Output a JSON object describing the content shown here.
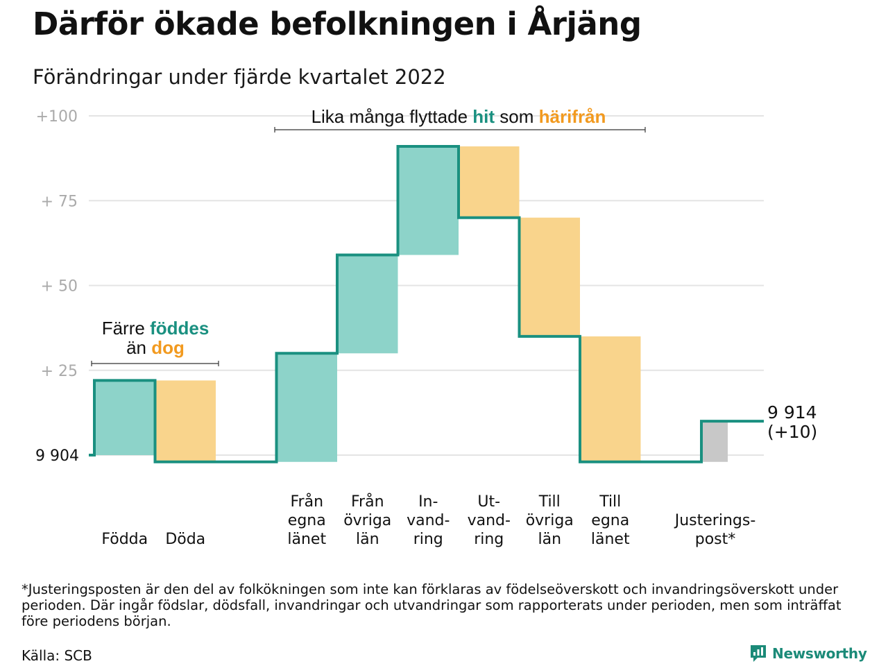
{
  "header": {
    "title": "Därför ökade befolkningen i Årjäng",
    "subtitle": "Förändringar under fjärde kvartalet 2022"
  },
  "chart_data": {
    "type": "bar",
    "subtype": "waterfall",
    "start": 9904,
    "end": 9914,
    "start_label": "9 904",
    "end_label": [
      "9 914",
      "(+10)"
    ],
    "y_ticks": [
      {
        "value": 100,
        "label": "+100"
      },
      {
        "value": 75,
        "label": "+ 75"
      },
      {
        "value": 50,
        "label": "+ 50"
      },
      {
        "value": 25,
        "label": "+ 25"
      }
    ],
    "ylim": [
      -2,
      100
    ],
    "grid": true,
    "steps": [
      {
        "key": "fodda",
        "lines": [
          "Födda"
        ],
        "delta": 22,
        "kind": "in"
      },
      {
        "key": "doda",
        "lines": [
          "Döda"
        ],
        "delta": -24,
        "kind": "out"
      },
      {
        "key": "fran-egna-lanet",
        "lines": [
          "Från",
          "egna",
          "länet"
        ],
        "delta": 32,
        "kind": "in"
      },
      {
        "key": "fran-ovriga-lan",
        "lines": [
          "Från",
          "övriga",
          "län"
        ],
        "delta": 29,
        "kind": "in"
      },
      {
        "key": "invandring",
        "lines": [
          "In-",
          "vand-",
          "ring"
        ],
        "delta": 32,
        "kind": "in"
      },
      {
        "key": "utvandring",
        "lines": [
          "Ut-",
          "vand-",
          "ring"
        ],
        "delta": -21,
        "kind": "out"
      },
      {
        "key": "till-ovriga-lan",
        "lines": [
          "Till",
          "övriga",
          "län"
        ],
        "delta": -35,
        "kind": "out"
      },
      {
        "key": "till-egna-lanet",
        "lines": [
          "Till",
          "egna",
          "länet"
        ],
        "delta": -37,
        "kind": "out"
      },
      {
        "key": "justeringspost",
        "lines": [
          "Justerings-",
          "post*"
        ],
        "delta": 12,
        "kind": "adjust"
      }
    ],
    "annotations": {
      "births": {
        "line1": "Färre",
        "line1_highlight": "föddes",
        "line2": "än",
        "line2_highlight": "dog"
      },
      "migration": {
        "text": "Lika många flyttade",
        "highlight1": "hit",
        "middle": "som",
        "highlight2": "härifrån"
      }
    },
    "colors": {
      "in": "#8dd3c9",
      "out": "#f9d48c",
      "adjust": "#c8c8c8",
      "step_line": "#1a9080",
      "grid": "#e4e4e4",
      "tick_text": "#aaaaaa",
      "teal_text": "#1a9080",
      "orange_text": "#f29a1f"
    }
  },
  "footer": {
    "footnote": "*Justeringsposten är den del av folkökningen som inte kan förklaras av födelseöverskott och invandringsöverskott under perioden. Där ingår födslar, dödsfall, invandringar och utvandringar som rapporterats under perioden, men som inträffat före periodens början.",
    "source": "Källa: SCB",
    "brand": "Newsworthy",
    "brand_icon": "newsworthy-logo-icon"
  }
}
